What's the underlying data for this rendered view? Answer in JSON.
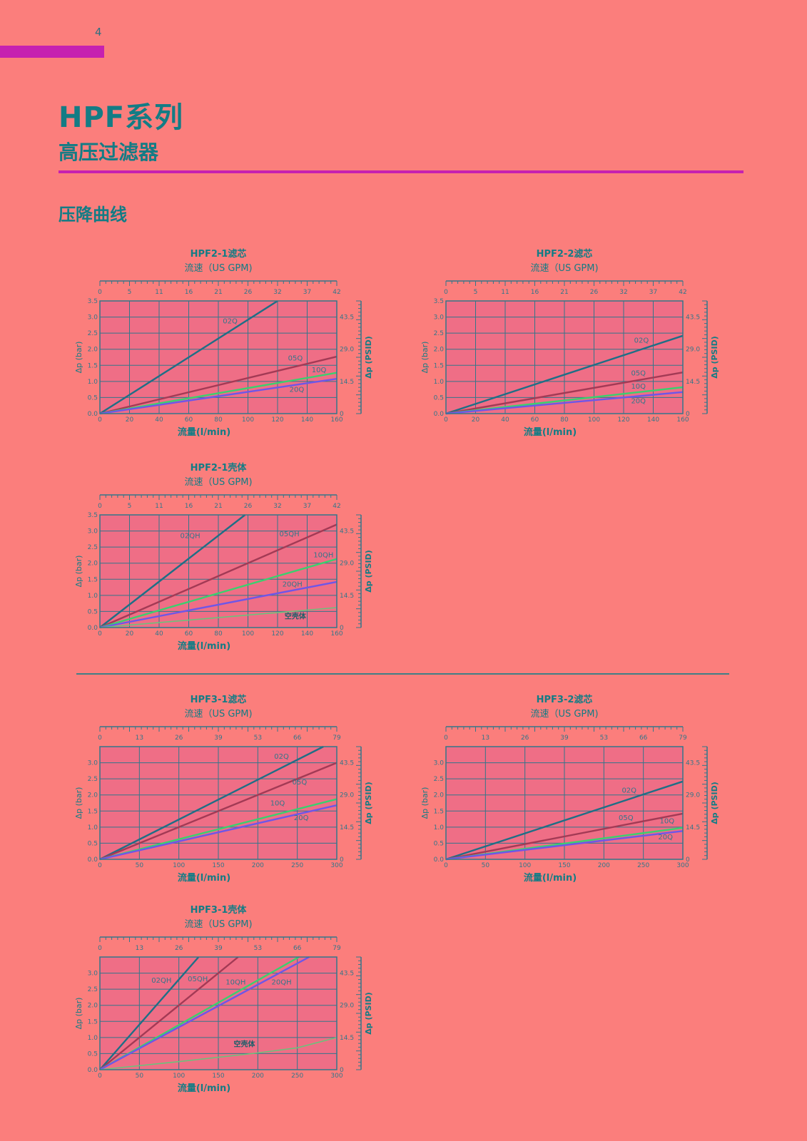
{
  "page": {
    "page_number": "4",
    "series_title": "HPF系列",
    "series_subtitle": "高压过滤器",
    "section_heading": "压降曲线"
  },
  "colors": {
    "accent": "#c621b0",
    "teal": "#137c85",
    "plot_bg": "#ef6e86",
    "grid": "#33768a",
    "series_02": "#1e6f86",
    "series_05": "#a33a55",
    "series_10": "#3bd06e",
    "series_20": "#6e56e8",
    "series_empty": "#6cc27b"
  },
  "chart_data": [
    {
      "id": "hpf2-1-element",
      "type": "line",
      "title": "HPF2-1滤芯",
      "top_axis_label": "流速（US GPM)",
      "xlabel": "流量(l/min)",
      "ylabel": "Δp (bar)",
      "y2label": "Δp (PSID)",
      "xlim": [
        0,
        160
      ],
      "ylim": [
        0,
        3.5
      ],
      "x_ticks": [
        "0",
        "20",
        "40",
        "60",
        "80",
        "100",
        "120",
        "140",
        "160"
      ],
      "y_ticks": [
        "0.0",
        "0.5",
        "1.0",
        "1.5",
        "2.0",
        "2.5",
        "3.0",
        "3.5"
      ],
      "top_ticks": [
        "0",
        "5",
        "11",
        "16",
        "21",
        "26",
        "32",
        "37",
        "42"
      ],
      "right_ticks": [
        "0",
        "14.5",
        "29.0",
        "43.5"
      ],
      "right_tick_values": [
        0,
        1.0,
        2.0,
        3.0
      ],
      "grid": true,
      "series": [
        {
          "name": "02Q",
          "x": [
            0,
            120
          ],
          "y": [
            0,
            3.5
          ],
          "label_at": [
            88,
            2.8
          ]
        },
        {
          "name": "05Q",
          "x": [
            0,
            160
          ],
          "y": [
            0,
            1.77
          ],
          "label_at": [
            132,
            1.65
          ]
        },
        {
          "name": "10Q",
          "x": [
            0,
            160
          ],
          "y": [
            0,
            1.27
          ],
          "label_at": [
            148,
            1.28
          ]
        },
        {
          "name": "20Q",
          "x": [
            0,
            160
          ],
          "y": [
            0,
            1.08
          ],
          "label_at": [
            133,
            0.68
          ]
        }
      ]
    },
    {
      "id": "hpf2-2-element",
      "type": "line",
      "title": "HPF2-2滤芯",
      "top_axis_label": "流速（US GPM)",
      "xlabel": "流量(l/min)",
      "ylabel": "Δp (bar)",
      "y2label": "Δp (PSID)",
      "xlim": [
        0,
        160
      ],
      "ylim": [
        0,
        3.5
      ],
      "x_ticks": [
        "0",
        "20",
        "40",
        "60",
        "80",
        "100",
        "120",
        "140",
        "160"
      ],
      "y_ticks": [
        "0.0",
        "0.5",
        "1.0",
        "1.5",
        "2.0",
        "2.5",
        "3.0",
        "3.5"
      ],
      "top_ticks": [
        "0",
        "5",
        "11",
        "16",
        "21",
        "26",
        "32",
        "37",
        "42"
      ],
      "right_ticks": [
        "0",
        "14.5",
        "29.0",
        "43.5"
      ],
      "right_tick_values": [
        0,
        1.0,
        2.0,
        3.0
      ],
      "grid": true,
      "series": [
        {
          "name": "02Q",
          "x": [
            0,
            160
          ],
          "y": [
            0,
            2.42
          ],
          "label_at": [
            132,
            2.2
          ]
        },
        {
          "name": "05Q",
          "x": [
            0,
            160
          ],
          "y": [
            0,
            1.28
          ],
          "label_at": [
            130,
            1.18
          ]
        },
        {
          "name": "10Q",
          "x": [
            0,
            160
          ],
          "y": [
            0,
            0.82
          ],
          "label_at": [
            130,
            0.78
          ]
        },
        {
          "name": "20Q",
          "x": [
            0,
            160
          ],
          "y": [
            0,
            0.67
          ],
          "label_at": [
            130,
            0.32
          ]
        }
      ]
    },
    {
      "id": "hpf2-1-housing",
      "type": "line",
      "title": "HPF2-1壳体",
      "top_axis_label": "流速（US GPM)",
      "xlabel": "流量(l/min)",
      "ylabel": "Δp (bar)",
      "y2label": "Δp (PSID)",
      "xlim": [
        0,
        160
      ],
      "ylim": [
        0,
        3.5
      ],
      "x_ticks": [
        "0",
        "20",
        "40",
        "60",
        "80",
        "100",
        "120",
        "140",
        "160"
      ],
      "y_ticks": [
        "0.0",
        "0.5",
        "1.0",
        "1.5",
        "2.0",
        "2.5",
        "3.0",
        "3.5"
      ],
      "top_ticks": [
        "0",
        "5",
        "11",
        "16",
        "21",
        "26",
        "32",
        "37",
        "42"
      ],
      "right_ticks": [
        "0",
        "14.5",
        "29.0",
        "43.5"
      ],
      "right_tick_values": [
        0,
        1.0,
        2.0,
        3.0
      ],
      "grid": true,
      "series": [
        {
          "name": "02QH",
          "x": [
            0,
            98
          ],
          "y": [
            0,
            3.5
          ],
          "label_at": [
            61,
            2.78
          ]
        },
        {
          "name": "05QH",
          "x": [
            0,
            160
          ],
          "y": [
            0,
            3.2
          ],
          "label_at": [
            128,
            2.83
          ]
        },
        {
          "name": "10QH",
          "x": [
            0,
            160
          ],
          "y": [
            0,
            2.13
          ],
          "label_at": [
            151,
            2.18
          ]
        },
        {
          "name": "20QH",
          "x": [
            0,
            160
          ],
          "y": [
            0,
            1.42
          ],
          "label_at": [
            130,
            1.27
          ]
        },
        {
          "name": "空壳体",
          "x": [
            0,
            160
          ],
          "y": [
            0,
            0.62
          ],
          "label_at": [
            132,
            0.28
          ],
          "bold": true
        }
      ]
    },
    {
      "id": "hpf3-1-element",
      "type": "line",
      "title": "HPF3-1滤芯",
      "top_axis_label": "流速（US GPM)",
      "xlabel": "流量(l/min)",
      "ylabel": "Δp (bar)",
      "y2label": "Δp (PSID)",
      "xlim": [
        0,
        300
      ],
      "ylim": [
        0,
        3.5
      ],
      "x_ticks": [
        "0",
        "50",
        "100",
        "150",
        "200",
        "250",
        "300"
      ],
      "y_ticks": [
        "0.0",
        "0.5",
        "1.0",
        "1.5",
        "2.0",
        "2.5",
        "3.0"
      ],
      "top_ticks": [
        "0",
        "13",
        "26",
        "39",
        "53",
        "66",
        "79"
      ],
      "right_ticks": [
        "0",
        "14.5",
        "29.0",
        "43.5"
      ],
      "right_tick_values": [
        0,
        1.0,
        2.0,
        3.0
      ],
      "grid": true,
      "series": [
        {
          "name": "02Q",
          "x": [
            0,
            283
          ],
          "y": [
            0,
            3.5
          ],
          "label_at": [
            230,
            3.12
          ]
        },
        {
          "name": "05Q",
          "x": [
            0,
            300
          ],
          "y": [
            0,
            3.0
          ],
          "label_at": [
            253,
            2.33
          ]
        },
        {
          "name": "10Q",
          "x": [
            0,
            300
          ],
          "y": [
            0,
            1.87
          ],
          "label_at": [
            225,
            1.67
          ]
        },
        {
          "name": "20Q",
          "x": [
            0,
            300
          ],
          "y": [
            0,
            1.68
          ],
          "label_at": [
            255,
            1.22
          ]
        }
      ]
    },
    {
      "id": "hpf3-2-element",
      "type": "line",
      "title": "HPF3-2滤芯",
      "top_axis_label": "流速（US GPM)",
      "xlabel": "流量(l/min)",
      "ylabel": "Δp (bar)",
      "y2label": "Δp (PSID)",
      "xlim": [
        0,
        300
      ],
      "ylim": [
        0,
        3.5
      ],
      "x_ticks": [
        "0",
        "50",
        "100",
        "150",
        "200",
        "250",
        "300"
      ],
      "y_ticks": [
        "0.0",
        "0.5",
        "1.0",
        "1.5",
        "2.0",
        "2.5",
        "3.0"
      ],
      "top_ticks": [
        "0",
        "13",
        "26",
        "39",
        "53",
        "66",
        "79"
      ],
      "right_ticks": [
        "0",
        "14.5",
        "29.0",
        "43.5"
      ],
      "right_tick_values": [
        0,
        1.0,
        2.0,
        3.0
      ],
      "grid": true,
      "series": [
        {
          "name": "02Q",
          "x": [
            0,
            300
          ],
          "y": [
            0,
            2.42
          ],
          "label_at": [
            232,
            2.07
          ]
        },
        {
          "name": "05Q",
          "x": [
            0,
            300
          ],
          "y": [
            0,
            1.42
          ],
          "label_at": [
            228,
            1.22
          ]
        },
        {
          "name": "10Q",
          "x": [
            0,
            300
          ],
          "y": [
            0,
            0.98
          ],
          "label_at": [
            280,
            1.12
          ]
        },
        {
          "name": "20Q",
          "x": [
            0,
            300
          ],
          "y": [
            0,
            0.88
          ],
          "label_at": [
            278,
            0.62
          ]
        }
      ]
    },
    {
      "id": "hpf3-1-housing",
      "type": "line",
      "title": "HPF3-1壳体",
      "top_axis_label": "流速（US GPM)",
      "xlabel": "流量(l/min)",
      "ylabel": "Δp (bar)",
      "y2label": "Δp (PSID)",
      "xlim": [
        0,
        300
      ],
      "ylim": [
        0,
        3.5
      ],
      "x_ticks": [
        "0",
        "50",
        "100",
        "150",
        "200",
        "250",
        "300"
      ],
      "y_ticks": [
        "0.0",
        "0.5",
        "1.0",
        "1.5",
        "2.0",
        "2.5",
        "3.0"
      ],
      "top_ticks": [
        "0",
        "13",
        "26",
        "39",
        "53",
        "66",
        "79"
      ],
      "right_ticks": [
        "0",
        "14.5",
        "29.0",
        "43.5"
      ],
      "right_tick_values": [
        0,
        1.0,
        2.0,
        3.0
      ],
      "grid": true,
      "series": [
        {
          "name": "02QH",
          "x": [
            0,
            125
          ],
          "y": [
            0,
            3.5
          ],
          "label_at": [
            78,
            2.7
          ]
        },
        {
          "name": "05QH",
          "x": [
            0,
            175
          ],
          "y": [
            0,
            3.5
          ],
          "label_at": [
            124,
            2.75
          ]
        },
        {
          "name": "10QH",
          "x": [
            0,
            252
          ],
          "y": [
            0,
            3.5
          ],
          "label_at": [
            172,
            2.65
          ]
        },
        {
          "name": "20QH",
          "x": [
            0,
            265
          ],
          "y": [
            0,
            3.5
          ],
          "label_at": [
            230,
            2.65
          ]
        },
        {
          "name": "空壳体",
          "x": [
            0,
            100,
            200,
            250,
            300
          ],
          "y": [
            0,
            0.25,
            0.52,
            0.68,
            1.0
          ],
          "label_at": [
            183,
            0.72
          ],
          "bold": true
        }
      ]
    }
  ]
}
